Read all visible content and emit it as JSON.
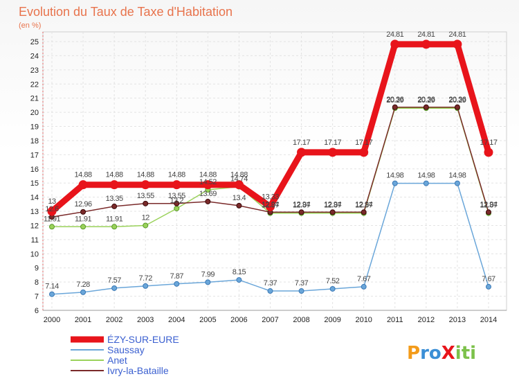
{
  "chart_data": {
    "type": "line",
    "title": "Evolution du Taux de Taxe d'Habitation",
    "subtitle": "(en %)",
    "xlabel": "",
    "ylabel": "",
    "ylim": [
      6,
      25
    ],
    "yticks": [
      "6",
      "7",
      "8",
      "9",
      "10",
      "11",
      "12",
      "13",
      "14",
      "15",
      "16",
      "17",
      "18",
      "19",
      "20",
      "21",
      "22",
      "23",
      "24",
      "25"
    ],
    "categories": [
      "2000",
      "2001",
      "2002",
      "2003",
      "2004",
      "2005",
      "2006",
      "2007",
      "2008",
      "2009",
      "2010",
      "2011",
      "2012",
      "2013",
      "2014"
    ],
    "legend_position": "bottom-left",
    "series": [
      {
        "name": "ÉZY-SUR-EURE",
        "color": "#e8141b",
        "values": [
          13,
          14.88,
          14.88,
          14.88,
          14.88,
          14.88,
          14.88,
          13.33,
          17.17,
          17.17,
          17.17,
          24.81,
          24.81,
          24.81,
          17.17
        ],
        "labels": [
          "13",
          "14.88",
          "14.88",
          "14.88",
          "14.88",
          "14.88",
          "14.88",
          "13.33",
          "17.17",
          "17.17",
          "17.17",
          "24.81",
          "24.81",
          "24.81",
          "17.17"
        ]
      },
      {
        "name": "Saussay",
        "color": "#6aa6d9",
        "values": [
          7.14,
          7.28,
          7.57,
          7.72,
          7.87,
          7.99,
          8.15,
          7.37,
          7.37,
          7.52,
          7.67,
          14.98,
          14.98,
          14.98,
          7.67
        ],
        "labels": [
          "7.14",
          "7.28",
          "7.57",
          "7.72",
          "7.87",
          "7.99",
          "8.15",
          "7.37",
          "7.37",
          "7.52",
          "7.67",
          "14.98",
          "14.98",
          "14.98",
          "7.67"
        ]
      },
      {
        "name": "Anet",
        "color": "#9ad25a",
        "values": [
          11.91,
          11.91,
          11.91,
          12,
          13.2,
          14.52,
          14.74,
          12.87,
          12.87,
          12.87,
          12.87,
          20.29,
          20.29,
          20.29,
          12.87
        ],
        "labels": [
          "11.91",
          "11.91",
          "11.91",
          "12",
          "13.2",
          "14.52",
          "14.74",
          "12.87",
          "12.87",
          "12.87",
          "12.87",
          "20.29",
          "20.29",
          "20.29",
          "12.87"
        ]
      },
      {
        "name": "Ivry-la-Bataille",
        "color": "#7a2a2a",
        "values": [
          12.6,
          12.96,
          13.35,
          13.55,
          13.55,
          13.69,
          13.4,
          12.94,
          12.94,
          12.94,
          12.94,
          20.36,
          20.36,
          20.36,
          12.94
        ],
        "labels": [
          "12.6",
          "12.96",
          "13.35",
          "13.55",
          "13.55",
          "13.69",
          "13.4",
          "12.94",
          "12.94",
          "12.94",
          "12.94",
          "20.36",
          "20.36",
          "20.36",
          "12.94"
        ]
      }
    ]
  },
  "logo": {
    "text": "ProXiti"
  }
}
